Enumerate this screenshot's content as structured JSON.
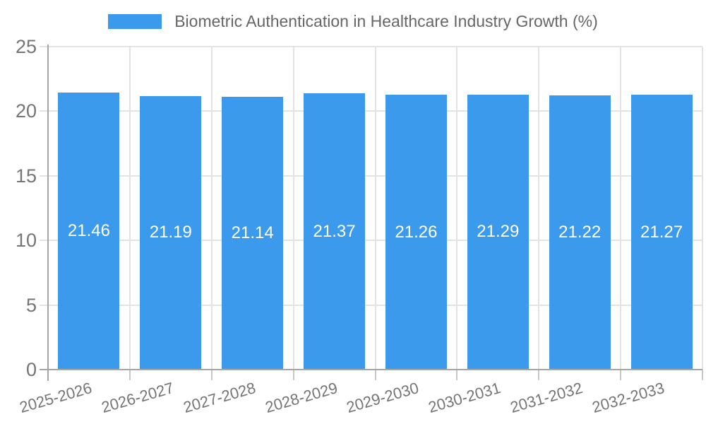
{
  "chart_data": {
    "type": "bar",
    "title": "Biometric Authentication in Healthcare Industry Growth (%)",
    "legend_position": "top",
    "categories": [
      "2025-2026",
      "2026-2027",
      "2027-2028",
      "2028-2029",
      "2029-2030",
      "2030-2031",
      "2031-2032",
      "2032-2033"
    ],
    "series": [
      {
        "name": "Biometric Authentication in Healthcare Industry Growth (%)",
        "values": [
          21.46,
          21.19,
          21.14,
          21.37,
          21.26,
          21.29,
          21.22,
          21.27
        ]
      }
    ],
    "xlabel": "",
    "ylabel": "",
    "ylim": [
      0,
      25
    ],
    "yticks": [
      0,
      5,
      10,
      15,
      20,
      25
    ],
    "grid": true,
    "value_labels": "centered inside bars"
  },
  "colors": {
    "bar": "#3B9AEC",
    "grid": "#E3E3E3",
    "axis": "#A5A5A5",
    "tick_text": "#757575",
    "title_text": "#666666",
    "value_label_text": "#FFFFFF",
    "background": "#FFFFFF"
  }
}
